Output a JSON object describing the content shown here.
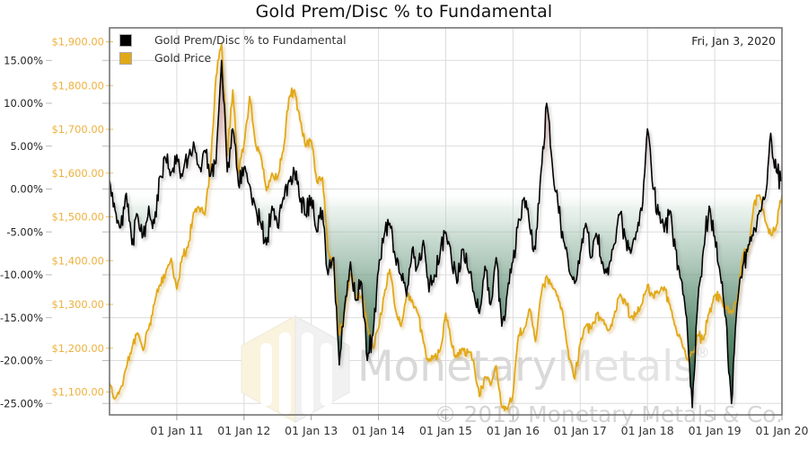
{
  "title": "Gold Prem/Disc % to Fundamental",
  "annotation_date": "Fri, Jan 3, 2020",
  "legend": {
    "position": "top-left",
    "items": [
      {
        "label": "Gold Prem/Disc % to Fundamental",
        "color": "#000000"
      },
      {
        "label": "Gold Price",
        "color": "#e2a917"
      }
    ]
  },
  "watermark": {
    "brand_first": "Monetary",
    "brand_second": "Metals",
    "registered": "®",
    "copyright": "© 2019 Monetary Metals & Co."
  },
  "colors": {
    "premdisc_line": "#000000",
    "gold_line": "#e2a917",
    "gold_axis_label": "#eeb23e",
    "grid": "#dcdcdc",
    "plot_border": "#6b6b6b",
    "fill_premium_red": "#a23737",
    "fill_discount_green": "#0e4826",
    "watermark_gray": "#d9d9d9"
  },
  "chart_data": {
    "type": "line",
    "title": "Gold Prem/Disc % to Fundamental",
    "xlabel": "",
    "grid": true,
    "legend_position": "top-left",
    "x_start_year": 2010.0,
    "x_end_year": 2020.0,
    "x_step_months": 1,
    "x_ticks": {
      "years": [
        2011,
        2012,
        2013,
        2014,
        2015,
        2016,
        2017,
        2018,
        2019,
        2020
      ],
      "labels": [
        "01 Jan 11",
        "01 Jan 12",
        "01 Jan 13",
        "01 Jan 14",
        "01 Jan 15",
        "01 Jan 16",
        "01 Jan 17",
        "01 Jan 18",
        "01 Jan 19",
        "01 Jan 20"
      ]
    },
    "y_axis_percent": {
      "side": "left-outer",
      "ticks": [
        15,
        10,
        5,
        0,
        -5,
        -10,
        -15,
        -20,
        -25
      ],
      "labels": [
        "15.00%",
        "10.00%",
        "5.00%",
        "0.00%",
        "-5.00%",
        "-10.00%",
        "-15.00%",
        "-20.00%",
        "-25.00%"
      ],
      "range": [
        -26.3,
        18.8
      ]
    },
    "y_axis_price": {
      "side": "left-inner",
      "ticks": [
        1900,
        1800,
        1700,
        1600,
        1500,
        1400,
        1300,
        1200,
        1100
      ],
      "labels": [
        "$1,900.00",
        "$1,800.00",
        "$1,700.00",
        "$1,600.00",
        "$1,500.00",
        "$1,400.00",
        "$1,300.00",
        "$1,200.00",
        "$1,100.00"
      ],
      "range": [
        1048,
        1932
      ]
    },
    "series": [
      {
        "name": "Gold Prem/Disc % to Fundamental",
        "axis": "percent",
        "color": "#000000",
        "fill_to_zero": true,
        "values": [
          1.0,
          -2.5,
          -4.5,
          -0.5,
          -6.5,
          -3.0,
          -5.5,
          -2.0,
          -4.0,
          1.5,
          3.5,
          2.0,
          4.0,
          1.5,
          3.5,
          5.5,
          2.5,
          4.5,
          1.5,
          3.0,
          15.0,
          2.0,
          7.0,
          0.5,
          2.5,
          0.5,
          -2.0,
          -4.0,
          -6.5,
          -2.0,
          -4.5,
          -1.0,
          1.0,
          2.0,
          -1.5,
          -3.0,
          -1.0,
          -5.0,
          -2.5,
          -10.0,
          -8.0,
          -20.5,
          -13.5,
          -8.5,
          -13.0,
          -11.0,
          -20.0,
          -17.0,
          -9.5,
          -5.5,
          -4.0,
          -8.0,
          -10.0,
          -12.5,
          -7.0,
          -9.0,
          -6.0,
          -12.0,
          -10.0,
          -7.5,
          -5.0,
          -8.0,
          -11.0,
          -7.0,
          -9.5,
          -12.0,
          -14.5,
          -9.0,
          -13.5,
          -8.0,
          -16.0,
          -12.0,
          -8.5,
          -3.5,
          -1.0,
          -4.5,
          -7.0,
          2.0,
          10.0,
          3.0,
          -1.5,
          -6.0,
          -9.5,
          -11.0,
          -7.5,
          -4.0,
          -8.0,
          -5.5,
          -8.5,
          -10.0,
          -6.5,
          -3.0,
          -5.5,
          -7.5,
          -5.0,
          -2.5,
          7.0,
          0.0,
          -3.0,
          -5.0,
          -2.5,
          -7.0,
          -10.5,
          -15.0,
          -25.5,
          -13.0,
          -7.0,
          -2.0,
          -5.5,
          -10.0,
          -15.0,
          -25.0,
          -13.5,
          -9.0,
          -6.5,
          -4.5,
          -2.5,
          -1.0,
          6.5,
          2.0,
          1.0
        ]
      },
      {
        "name": "Gold Price",
        "axis": "price",
        "color": "#e2a917",
        "fill_to_zero": false,
        "values": [
          1120,
          1085,
          1110,
          1155,
          1200,
          1235,
          1195,
          1245,
          1300,
          1345,
          1370,
          1405,
          1335,
          1410,
          1430,
          1510,
          1520,
          1505,
          1615,
          1820,
          1895,
          1640,
          1790,
          1600,
          1665,
          1775,
          1670,
          1640,
          1560,
          1600,
          1590,
          1650,
          1770,
          1790,
          1720,
          1660,
          1675,
          1580,
          1590,
          1420,
          1390,
          1230,
          1290,
          1370,
          1320,
          1320,
          1250,
          1200,
          1245,
          1320,
          1380,
          1290,
          1250,
          1320,
          1310,
          1280,
          1215,
          1170,
          1180,
          1195,
          1280,
          1210,
          1180,
          1200,
          1190,
          1170,
          1090,
          1135,
          1115,
          1160,
          1065,
          1060,
          1095,
          1230,
          1245,
          1290,
          1215,
          1320,
          1365,
          1340,
          1320,
          1270,
          1175,
          1130,
          1210,
          1250,
          1245,
          1280,
          1265,
          1240,
          1270,
          1320,
          1310,
          1270,
          1280,
          1300,
          1345,
          1320,
          1325,
          1340,
          1300,
          1250,
          1220,
          1175,
          1190,
          1230,
          1220,
          1280,
          1320,
          1315,
          1290,
          1280,
          1305,
          1410,
          1425,
          1530,
          1550,
          1490,
          1460,
          1480,
          1550
        ]
      }
    ]
  }
}
